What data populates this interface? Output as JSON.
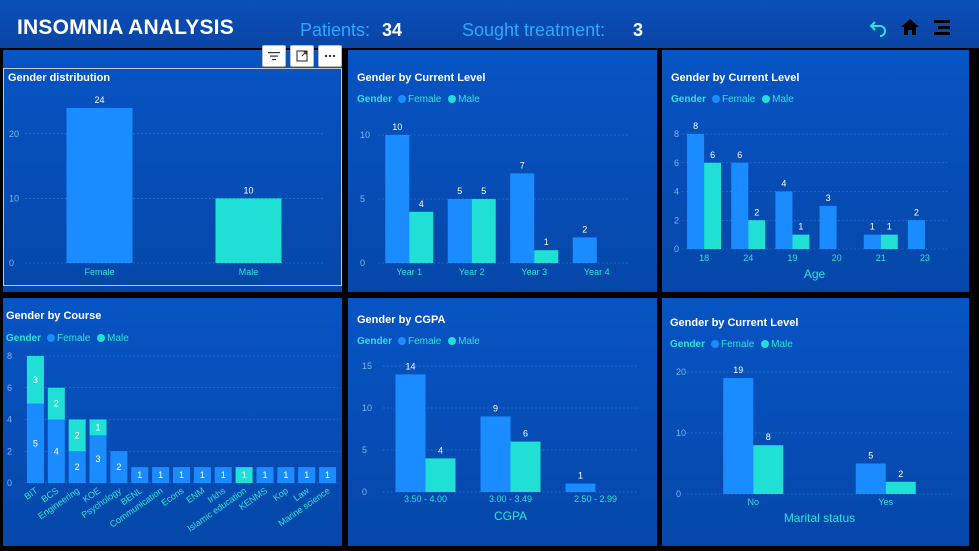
{
  "header": {
    "title": "INSOMNIA ANALYSIS",
    "patients_label": "Patients:",
    "patients_value": "34",
    "treatment_label": "Sought treatment:",
    "treatment_value": "3",
    "icons": [
      "back-arrow-icon",
      "home-icon",
      "menu-icon"
    ]
  },
  "colors": {
    "female": "#1a8cff",
    "male": "#20e0d5",
    "tile_top": "#0754c4",
    "header": "#0a4fb8"
  },
  "legend": {
    "title": "Gender",
    "female": "Female",
    "male": "Male"
  },
  "tiles": [
    {
      "title": "Gender distribution"
    },
    {
      "title": "Gender by Current Level"
    },
    {
      "title": "Gender by Current Level"
    },
    {
      "title": "Gender by Course"
    },
    {
      "title": "Gender by CGPA"
    },
    {
      "title": "Gender by Current Level"
    }
  ],
  "chart_data": [
    {
      "type": "bar",
      "title": "Gender distribution",
      "categories": [
        "Female",
        "Male"
      ],
      "values": [
        24,
        10
      ],
      "ylim": [
        0,
        24
      ],
      "yticks": [
        0,
        10,
        20
      ]
    },
    {
      "type": "bar",
      "title": "Gender by Current Level",
      "categories": [
        "Year 1",
        "Year 2",
        "Year 3",
        "Year 4"
      ],
      "series": [
        {
          "name": "Female",
          "values": [
            10,
            5,
            7,
            2
          ]
        },
        {
          "name": "Male",
          "values": [
            4,
            5,
            1,
            null
          ]
        }
      ],
      "ylim": [
        0,
        10
      ],
      "yticks": [
        0,
        5,
        10
      ]
    },
    {
      "type": "bar",
      "title": "Gender by Current Level",
      "xlabel": "Age",
      "categories": [
        "18",
        "24",
        "19",
        "20",
        "21",
        "23"
      ],
      "series": [
        {
          "name": "Female",
          "values": [
            8,
            6,
            4,
            3,
            1,
            2
          ]
        },
        {
          "name": "Male",
          "values": [
            6,
            2,
            1,
            null,
            1,
            null
          ]
        }
      ],
      "ylim": [
        0,
        8
      ],
      "yticks": [
        0,
        2,
        4,
        6,
        8
      ]
    },
    {
      "type": "bar",
      "stacked": true,
      "title": "Gender by Course",
      "categories": [
        "BIT",
        "BCS",
        "Engineering",
        "KOE",
        "Psychology",
        "BENL",
        "Communication",
        "Econs",
        "ENM",
        "Irkhs",
        "Islamic education",
        "KENMS",
        "Kop",
        "Law",
        "Marine science"
      ],
      "series": [
        {
          "name": "Female",
          "values": [
            5,
            4,
            2,
            3,
            2,
            1,
            1,
            1,
            1,
            1,
            null,
            1,
            1,
            1,
            1
          ]
        },
        {
          "name": "Male",
          "values": [
            3,
            2,
            2,
            1,
            null,
            null,
            null,
            null,
            null,
            null,
            1,
            null,
            null,
            null,
            null
          ]
        }
      ],
      "ylim": [
        0,
        8
      ],
      "yticks": [
        0,
        2,
        4,
        6,
        8
      ]
    },
    {
      "type": "bar",
      "title": "Gender by CGPA",
      "xlabel": "CGPA",
      "categories": [
        "3.50 - 4.00",
        "3.00 - 3.49",
        "2.50 - 2.99"
      ],
      "series": [
        {
          "name": "Female",
          "values": [
            14,
            9,
            1
          ]
        },
        {
          "name": "Male",
          "values": [
            4,
            6,
            null
          ]
        }
      ],
      "ylim": [
        0,
        15
      ],
      "yticks": [
        0,
        5,
        10,
        15
      ]
    },
    {
      "type": "bar",
      "title": "Gender by Current Level",
      "xlabel": "Marital status",
      "categories": [
        "No",
        "Yes"
      ],
      "series": [
        {
          "name": "Female",
          "values": [
            19,
            5
          ]
        },
        {
          "name": "Male",
          "values": [
            8,
            2
          ]
        }
      ],
      "ylim": [
        0,
        20
      ],
      "yticks": [
        0,
        10,
        20
      ]
    }
  ]
}
